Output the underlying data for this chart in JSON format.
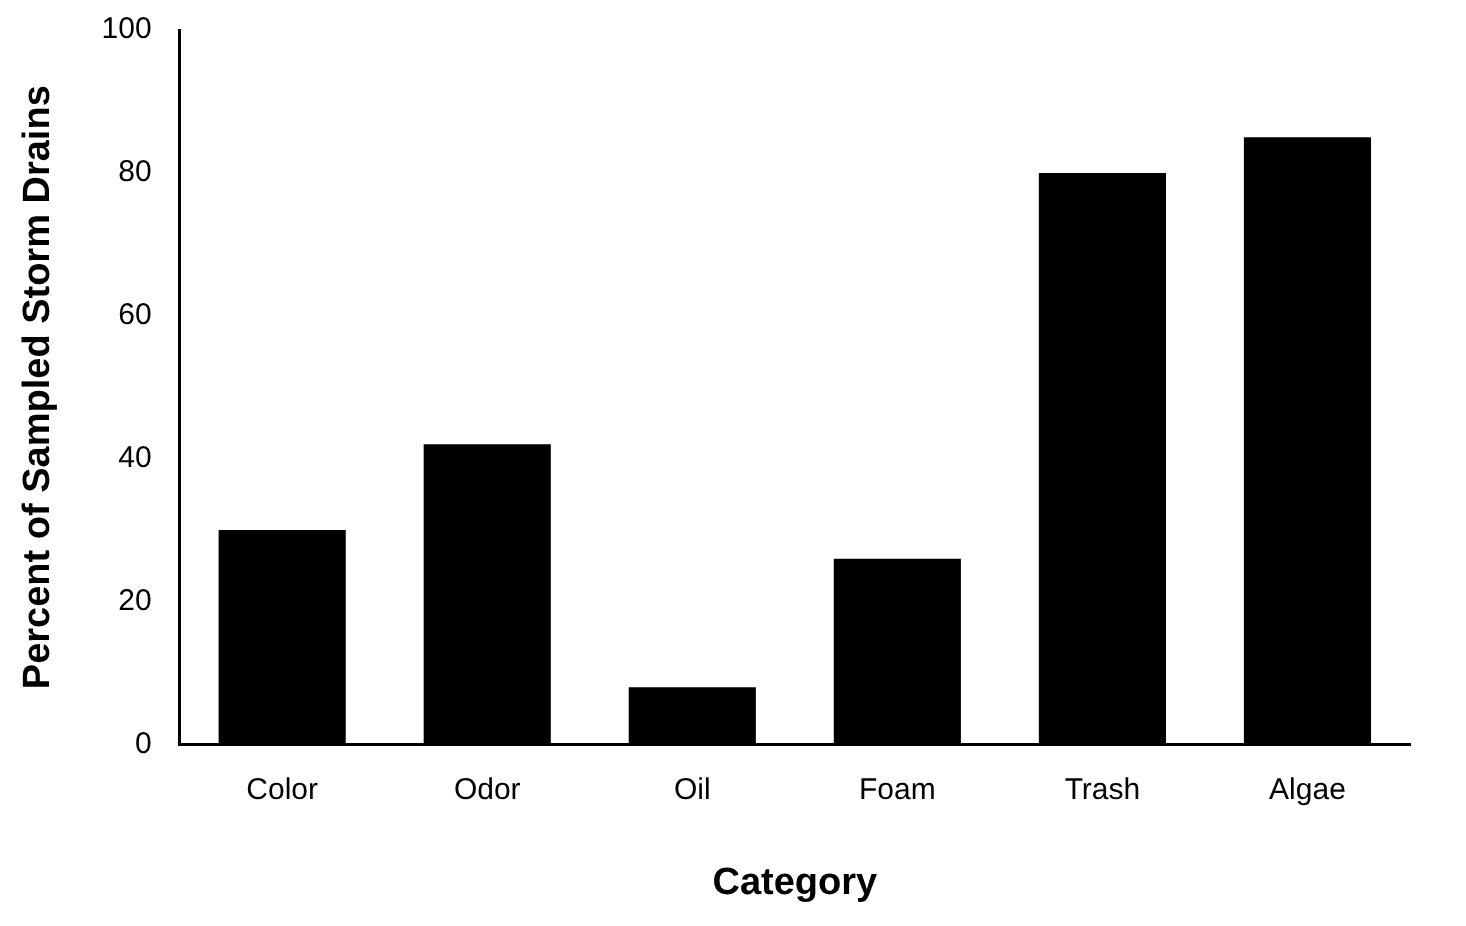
{
  "chart_data": {
    "type": "bar",
    "xlabel": "Category",
    "ylabel": "Percent of Sampled Storm Drains",
    "categories": [
      "Color",
      "Odor",
      "Oil",
      "Foam",
      "Trash",
      "Algae"
    ],
    "values": [
      30,
      42,
      8,
      26,
      80,
      85
    ],
    "color": "#000000",
    "ylim": [
      0,
      100
    ],
    "yticks": [
      0,
      20,
      40,
      60,
      80,
      100
    ],
    "grid": false,
    "legend": false
  }
}
